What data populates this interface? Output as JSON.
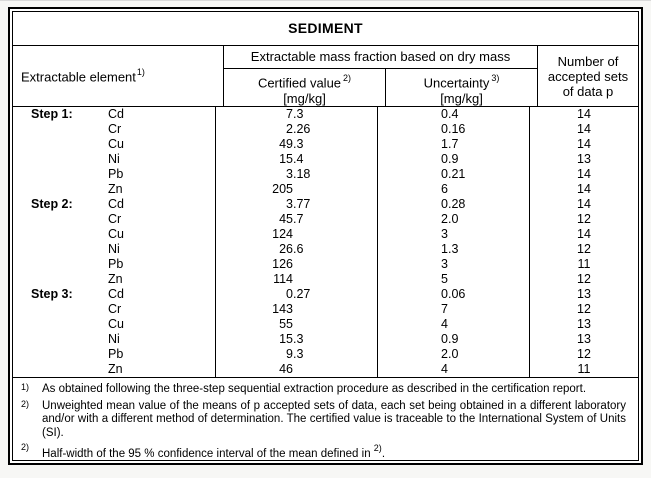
{
  "title": "SEDIMENT",
  "header": {
    "element_label": "Extractable element",
    "element_sup": "1)",
    "group_label": "Extractable mass fraction based on dry mass",
    "certified_label": "Certified value",
    "certified_sup": "2)",
    "certified_unit": "[mg/kg]",
    "uncertainty_label": "Uncertainty",
    "uncertainty_sup": "3)",
    "uncertainty_unit": "[mg/kg]",
    "sets_lines": [
      "Number of",
      "accepted sets",
      "of data p"
    ]
  },
  "rows": [
    {
      "step": "Step 1:",
      "element": "Cd",
      "certified": "7.3",
      "uncertainty": "0.4",
      "sets": "14"
    },
    {
      "step": "",
      "element": "Cr",
      "certified": "2.26",
      "uncertainty": "0.16",
      "sets": "14"
    },
    {
      "step": "",
      "element": "Cu",
      "certified": "49.3",
      "uncertainty": "1.7",
      "sets": "14"
    },
    {
      "step": "",
      "element": "Ni",
      "certified": "15.4",
      "uncertainty": "0.9",
      "sets": "13"
    },
    {
      "step": "",
      "element": "Pb",
      "certified": "3.18",
      "uncertainty": "0.21",
      "sets": "14"
    },
    {
      "step": "",
      "element": "Zn",
      "certified": "205",
      "uncertainty": "6",
      "sets": "14"
    },
    {
      "step": "Step 2:",
      "element": "Cd",
      "certified": "3.77",
      "uncertainty": "0.28",
      "sets": "14"
    },
    {
      "step": "",
      "element": "Cr",
      "certified": "45.7",
      "uncertainty": "2.0",
      "sets": "12"
    },
    {
      "step": "",
      "element": "Cu",
      "certified": "124",
      "uncertainty": "3",
      "sets": "14"
    },
    {
      "step": "",
      "element": "Ni",
      "certified": "26.6",
      "uncertainty": "1.3",
      "sets": "12"
    },
    {
      "step": "",
      "element": "Pb",
      "certified": "126",
      "uncertainty": "3",
      "sets": "11"
    },
    {
      "step": "",
      "element": "Zn",
      "certified": "114",
      "uncertainty": "5",
      "sets": "12"
    },
    {
      "step": "Step 3:",
      "element": "Cd",
      "certified": "0.27",
      "uncertainty": "0.06",
      "sets": "13"
    },
    {
      "step": "",
      "element": "Cr",
      "certified": "143",
      "uncertainty": "7",
      "sets": "12"
    },
    {
      "step": "",
      "element": "Cu",
      "certified": "55",
      "uncertainty": "4",
      "sets": "13"
    },
    {
      "step": "",
      "element": "Ni",
      "certified": "15.3",
      "uncertainty": "0.9",
      "sets": "13"
    },
    {
      "step": "",
      "element": "Pb",
      "certified": "9.3",
      "uncertainty": "2.0",
      "sets": "12"
    },
    {
      "step": "",
      "element": "Zn",
      "certified": "46",
      "uncertainty": "4",
      "sets": "11"
    }
  ],
  "footnotes": [
    {
      "marker": "1)",
      "justify": false,
      "text": "As obtained following the three-step sequential extraction procedure as described in the certification report."
    },
    {
      "marker": "2)",
      "justify": true,
      "text": "Unweighted mean value of the means of p accepted sets of data, each set being obtained in a different laboratory and/or with a different method of determination. The certified value is traceable to the International System of Units (SI)."
    },
    {
      "marker": "2)",
      "justify": false,
      "text": "Half-width of the 95 % confidence interval of the mean defined in ",
      "sup": "2)",
      "suffix": "."
    }
  ],
  "colors": {
    "border": "#000000",
    "page_background": "#f7f7f5",
    "table_background": "#ffffff",
    "text": "#000000"
  }
}
